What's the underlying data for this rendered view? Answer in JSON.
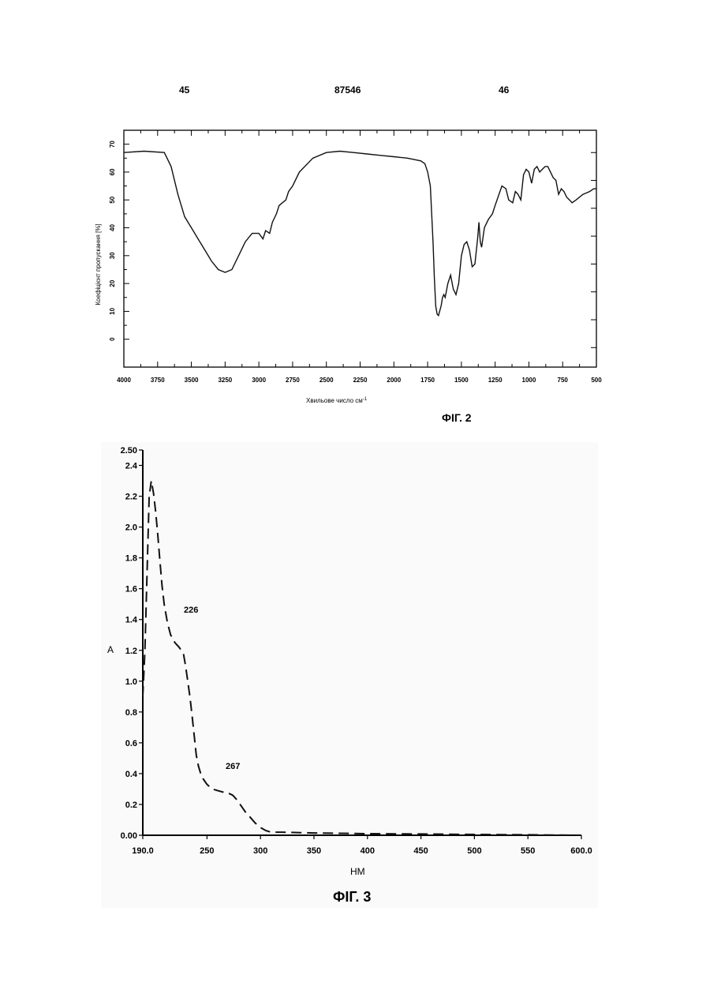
{
  "header": {
    "page_left": "45",
    "patent_number": "87546",
    "page_right": "46"
  },
  "captions": {
    "fig2": "ФІГ. 2",
    "fig3": "ФІГ. 3"
  },
  "chart_data": [
    {
      "type": "line",
      "figure": "ФІГ. 2",
      "xlabel": "Хвильове число см",
      "xlabel_superscript": "-1",
      "ylabel": "Коефіцієнт пропускання [%]",
      "xlim": [
        4000,
        500
      ],
      "ylim": [
        -10,
        75
      ],
      "x_ticks": [
        "4000",
        "3750",
        "3500",
        "3250",
        "3000",
        "2750",
        "2500",
        "2250",
        "2000",
        "1750",
        "1500",
        "1250",
        "1000",
        "750",
        "500"
      ],
      "y_ticks": [
        "0",
        "10",
        "20",
        "30",
        "40",
        "50",
        "60",
        "70"
      ],
      "series": [
        {
          "x": [
            4000,
            3850,
            3700,
            3650,
            3600,
            3550,
            3500,
            3450,
            3400,
            3350,
            3300,
            3250,
            3200,
            3150,
            3100,
            3050,
            3000,
            2970,
            2950,
            2920,
            2900,
            2870,
            2850,
            2800,
            2780,
            2750,
            2700,
            2600,
            2500,
            2400,
            2300,
            2200,
            2100,
            2000,
            1900,
            1800,
            1770,
            1750,
            1730,
            1720,
            1710,
            1700,
            1690,
            1680,
            1670,
            1650,
            1640,
            1630,
            1620,
            1600,
            1580,
            1560,
            1540,
            1520,
            1500,
            1480,
            1460,
            1440,
            1420,
            1400,
            1380,
            1370,
            1360,
            1350,
            1330,
            1300,
            1270,
            1250,
            1200,
            1170,
            1150,
            1120,
            1100,
            1080,
            1060,
            1040,
            1020,
            1000,
            980,
            960,
            940,
            920,
            900,
            880,
            860,
            840,
            820,
            800,
            780,
            760,
            740,
            720,
            700,
            680,
            650,
            600,
            550,
            520,
            500
          ],
          "y": [
            67,
            67.5,
            67,
            62,
            52,
            44,
            40,
            36,
            32,
            28,
            25,
            24,
            25,
            30,
            35,
            38,
            38,
            36,
            39,
            38,
            42,
            45,
            48,
            50,
            53,
            55,
            60,
            65,
            67,
            67.5,
            67,
            66.5,
            66,
            65.5,
            65,
            64,
            63,
            60,
            55,
            45,
            35,
            22,
            12,
            9,
            8.5,
            12,
            15,
            16,
            15,
            20,
            23,
            18,
            16,
            20,
            30,
            34,
            35,
            32,
            26,
            27,
            36,
            42,
            35,
            33,
            40,
            43,
            45,
            48,
            55,
            54,
            50,
            49,
            53,
            52,
            50,
            59,
            61,
            60,
            56,
            61,
            62,
            60,
            61,
            62,
            62,
            60,
            58,
            57,
            52,
            54,
            53,
            51,
            50,
            49,
            50,
            52,
            53,
            54,
            54
          ]
        }
      ]
    },
    {
      "type": "line",
      "figure": "ФІГ. 3",
      "xlabel": "НМ",
      "ylabel": "A",
      "xlim": [
        190,
        600
      ],
      "ylim": [
        0,
        2.5
      ],
      "x_ticks": [
        "190.0",
        "250",
        "300",
        "350",
        "400",
        "450",
        "500",
        "550",
        "600.0"
      ],
      "y_ticks": [
        "0.00",
        "0.2",
        "0.4",
        "0.6",
        "0.8",
        "1.0",
        "1.2",
        "1.4",
        "1.6",
        "1.8",
        "2.0",
        "2.2",
        "2.4",
        "2.50"
      ],
      "annotations": [
        "226",
        "267"
      ],
      "series": [
        {
          "x": [
            190,
            192,
            194,
            196,
            198,
            200,
            202,
            204,
            206,
            208,
            210,
            213,
            216,
            220,
            224,
            228,
            230,
            232,
            234,
            236,
            238,
            240,
            242,
            245,
            250,
            255,
            260,
            265,
            268,
            271,
            274,
            278,
            282,
            286,
            290,
            295,
            300,
            305,
            310,
            320,
            350,
            400,
            450,
            500,
            550,
            600
          ],
          "y": [
            0.9,
            1.2,
            1.7,
            2.2,
            2.3,
            2.22,
            2.1,
            1.95,
            1.78,
            1.62,
            1.5,
            1.38,
            1.3,
            1.25,
            1.22,
            1.18,
            1.1,
            1.0,
            0.9,
            0.78,
            0.65,
            0.52,
            0.45,
            0.38,
            0.33,
            0.3,
            0.29,
            0.28,
            0.27,
            0.27,
            0.26,
            0.23,
            0.19,
            0.15,
            0.12,
            0.08,
            0.05,
            0.03,
            0.02,
            0.02,
            0.015,
            0.01,
            0.008,
            0.005,
            0.003,
            0.0
          ]
        }
      ]
    }
  ]
}
